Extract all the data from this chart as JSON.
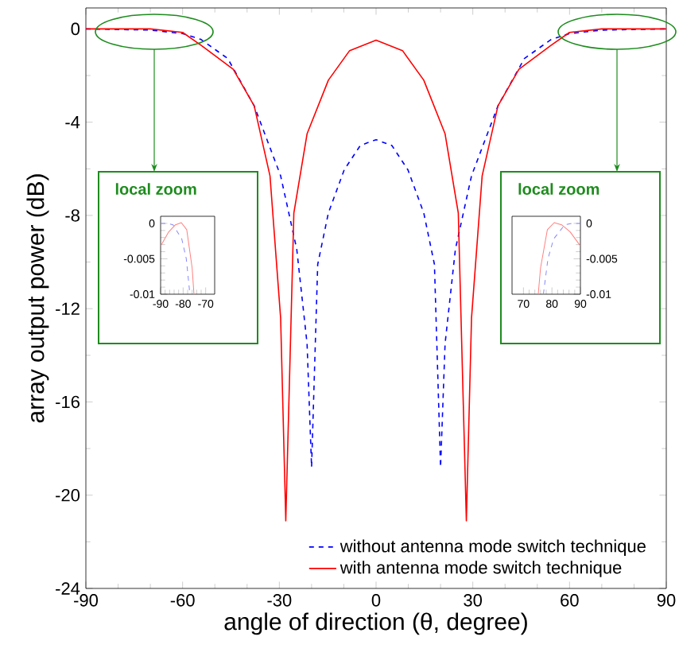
{
  "chart_data": [
    {
      "type": "line",
      "xlabel": "angle of direction (θ, degree)",
      "ylabel": "array output power (dB)",
      "xlim": [
        -90,
        90
      ],
      "ylim": [
        -24,
        0.9
      ],
      "xticks": [
        -90,
        -60,
        -30,
        0,
        30,
        60,
        90
      ],
      "yticks": [
        0,
        -4,
        -8,
        -12,
        -16,
        -20,
        -24
      ],
      "legend": "bottom right",
      "series": [
        {
          "name": "without antenna mode switch technique",
          "color": "#0000ff",
          "line_style": "dashed",
          "x": [
            -90,
            -70,
            -60,
            -54.3,
            -46,
            -37.8,
            -29.6,
            -24.6,
            -21.4,
            -20,
            -18.1,
            -14.8,
            -9.9,
            -4.9,
            0,
            4.9,
            9.9,
            14.8,
            18.1,
            20,
            21.4,
            24.6,
            29.6,
            37.8,
            46,
            54.3,
            60,
            70,
            90
          ],
          "values": [
            0,
            -0.05,
            -0.2,
            -0.45,
            -1.27,
            -3.3,
            -6.3,
            -9.45,
            -13.5,
            -18.8,
            -10.1,
            -7.9,
            -6.05,
            -5.0,
            -4.75,
            -5.0,
            -6.05,
            -7.9,
            -10.1,
            -18.8,
            -13.5,
            -9.45,
            -6.3,
            -3.3,
            -1.27,
            -0.45,
            -0.2,
            -0.05,
            0
          ]
        },
        {
          "name": "with antenna mode switch technique",
          "color": "#ff0000",
          "line_style": "solid",
          "x": [
            -90,
            -70,
            -60,
            -54.3,
            -44.3,
            -37.8,
            -32.9,
            -29.6,
            -28,
            -25.5,
            -21.4,
            -14.8,
            -8.2,
            0,
            8.2,
            14.8,
            21.4,
            25.5,
            28,
            29.6,
            32.9,
            37.8,
            44.3,
            54.3,
            60,
            70,
            90
          ],
          "values": [
            0,
            0,
            -0.15,
            -0.7,
            -1.73,
            -3.3,
            -6.3,
            -12.4,
            -21.1,
            -7.9,
            -4.5,
            -2.2,
            -0.93,
            -0.48,
            -0.93,
            -2.2,
            -4.5,
            -7.9,
            -21.1,
            -12.4,
            -6.3,
            -3.3,
            -1.73,
            -0.7,
            -0.15,
            0,
            0
          ]
        }
      ]
    },
    {
      "type": "line",
      "title": "local zoom",
      "xlim": [
        -90,
        -66
      ],
      "ylim": [
        -0.01,
        0.001
      ],
      "xticks": [
        -90,
        -80,
        -70
      ],
      "yticks": [
        0,
        -0.005,
        -0.01
      ],
      "series": [
        {
          "color": "#8888ff",
          "line_style": "dashed",
          "x": [
            -90,
            -87,
            -84.5,
            -80.6,
            -78.6,
            -77
          ],
          "values": [
            0,
            0,
            -0.0002,
            -0.0022,
            -0.005,
            -0.01
          ]
        },
        {
          "color": "#ff8080",
          "line_style": "solid",
          "x": [
            -90,
            -86.4,
            -83.4,
            -80.8,
            -78.4,
            -76,
            -75.2
          ],
          "values": [
            -0.0032,
            -0.0012,
            -0.0002,
            0.0001,
            -0.0009,
            -0.0063,
            -0.01
          ]
        }
      ]
    },
    {
      "type": "line",
      "title": "local zoom",
      "xlim": [
        66,
        90
      ],
      "ylim": [
        -0.01,
        0.001
      ],
      "xticks": [
        70,
        80,
        90
      ],
      "yticks": [
        0,
        -0.005,
        -0.01
      ],
      "series": [
        {
          "color": "#8888ff",
          "line_style": "dashed",
          "x": [
            77,
            78.6,
            80.6,
            84.5,
            87,
            90
          ],
          "values": [
            -0.01,
            -0.005,
            -0.0022,
            -0.0002,
            0,
            0
          ]
        },
        {
          "color": "#ff8080",
          "line_style": "solid",
          "x": [
            75.2,
            76,
            78.4,
            80.8,
            83.4,
            86.4,
            90
          ],
          "values": [
            -0.01,
            -0.0063,
            -0.0009,
            0.0001,
            -0.0002,
            -0.0012,
            -0.0032
          ]
        }
      ]
    }
  ]
}
